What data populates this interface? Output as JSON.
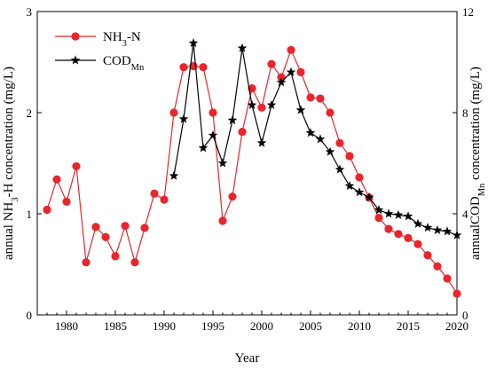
{
  "chart_data": {
    "type": "line",
    "title": "",
    "xlabel": "Year",
    "ylabel_left": {
      "main": "annual NH",
      "sub": "3",
      "rest": "-H concentration (mg/L)"
    },
    "ylabel_right": {
      "main": "annualCOD",
      "sub": "Mn",
      "rest": " concentration (mg/L)"
    },
    "xlim": [
      1977,
      2020
    ],
    "ylim_left": [
      0,
      3
    ],
    "ylim_right": [
      0,
      12
    ],
    "xticks": [
      1980,
      1985,
      1990,
      1995,
      2000,
      2005,
      2010,
      2015,
      2020
    ],
    "yticks_left": [
      0,
      1,
      2,
      3
    ],
    "yticks_right": [
      0,
      4,
      8,
      12
    ],
    "legend_position": "top-left",
    "series": [
      {
        "name": "NH3-N",
        "legend": {
          "main": "NH",
          "sub": "3",
          "rest": "-N"
        },
        "axis": "left",
        "color": "#e8262b",
        "marker": "circle",
        "x": [
          1978,
          1979,
          1980,
          1981,
          1982,
          1983,
          1984,
          1985,
          1986,
          1987,
          1988,
          1989,
          1990,
          1991,
          1992,
          1993,
          1994,
          1995,
          1996,
          1997,
          1998,
          1999,
          2000,
          2001,
          2002,
          2003,
          2004,
          2005,
          2006,
          2007,
          2008,
          2009,
          2010,
          2011,
          2012,
          2013,
          2014,
          2015,
          2016,
          2017,
          2018,
          2019,
          2020
        ],
        "y": [
          1.04,
          1.34,
          1.12,
          1.47,
          0.52,
          0.87,
          0.77,
          0.58,
          0.88,
          0.52,
          0.86,
          1.2,
          1.14,
          2.0,
          2.45,
          2.46,
          2.45,
          2.0,
          0.93,
          1.17,
          1.81,
          2.24,
          2.05,
          2.48,
          2.35,
          2.62,
          2.4,
          2.15,
          2.14,
          2.0,
          1.7,
          1.57,
          1.36,
          1.16,
          0.96,
          0.85,
          0.8,
          0.76,
          0.7,
          0.59,
          0.48,
          0.36,
          0.21
        ]
      },
      {
        "name": "CODMn",
        "legend": {
          "main": "COD",
          "sub": "Mn",
          "rest": ""
        },
        "axis": "right",
        "color": "#000000",
        "marker": "star",
        "x": [
          1991,
          1992,
          1993,
          1994,
          1995,
          1996,
          1997,
          1998,
          1999,
          2000,
          2001,
          2002,
          2003,
          2004,
          2005,
          2006,
          2007,
          2008,
          2009,
          2010,
          2011,
          2012,
          2013,
          2014,
          2015,
          2016,
          2017,
          2018,
          2019,
          2020
        ],
        "y": [
          5.5,
          7.75,
          10.75,
          6.6,
          7.1,
          6.0,
          7.7,
          10.55,
          8.3,
          6.8,
          8.3,
          9.2,
          9.6,
          8.1,
          7.2,
          6.95,
          6.45,
          5.75,
          5.1,
          4.85,
          4.65,
          4.15,
          4.0,
          3.95,
          3.9,
          3.6,
          3.45,
          3.35,
          3.3,
          3.15
        ]
      }
    ]
  }
}
